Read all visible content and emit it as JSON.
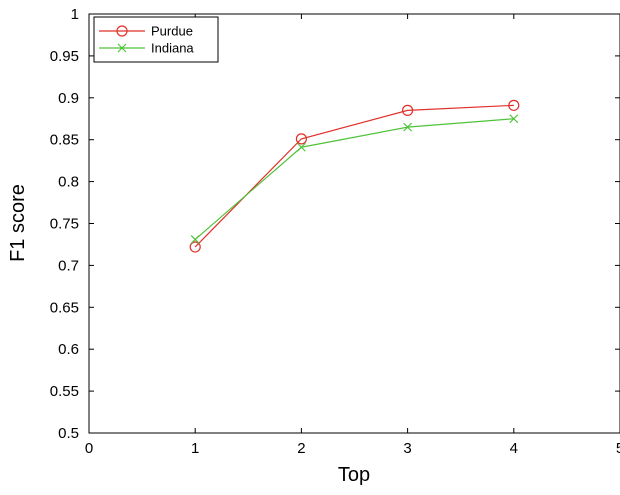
{
  "chart_data": {
    "type": "line",
    "xlabel": "Top",
    "ylabel": "F1 score",
    "xlim": [
      0,
      5
    ],
    "ylim": [
      0.5,
      1
    ],
    "xticks": [
      0,
      1,
      2,
      3,
      4,
      5
    ],
    "yticks": [
      0.5,
      0.55,
      0.6,
      0.65,
      0.7,
      0.75,
      0.8,
      0.85,
      0.9,
      0.95,
      1
    ],
    "xtick_labels": [
      "0",
      "1",
      "2",
      "3",
      "4",
      "5"
    ],
    "ytick_labels": [
      "0.5",
      "0.55",
      "0.6",
      "0.65",
      "0.7",
      "0.75",
      "0.8",
      "0.85",
      "0.9",
      "0.95",
      "1"
    ],
    "grid": false,
    "legend_position": "top-left",
    "series": [
      {
        "name": "Purdue",
        "color": "#e0302b",
        "marker": "circle",
        "x": [
          1,
          2,
          3,
          4
        ],
        "y": [
          0.722,
          0.851,
          0.885,
          0.891
        ]
      },
      {
        "name": "Indiana",
        "color": "#4fc23a",
        "marker": "x",
        "x": [
          1,
          2,
          3,
          4
        ],
        "y": [
          0.731,
          0.841,
          0.865,
          0.875
        ]
      }
    ]
  }
}
